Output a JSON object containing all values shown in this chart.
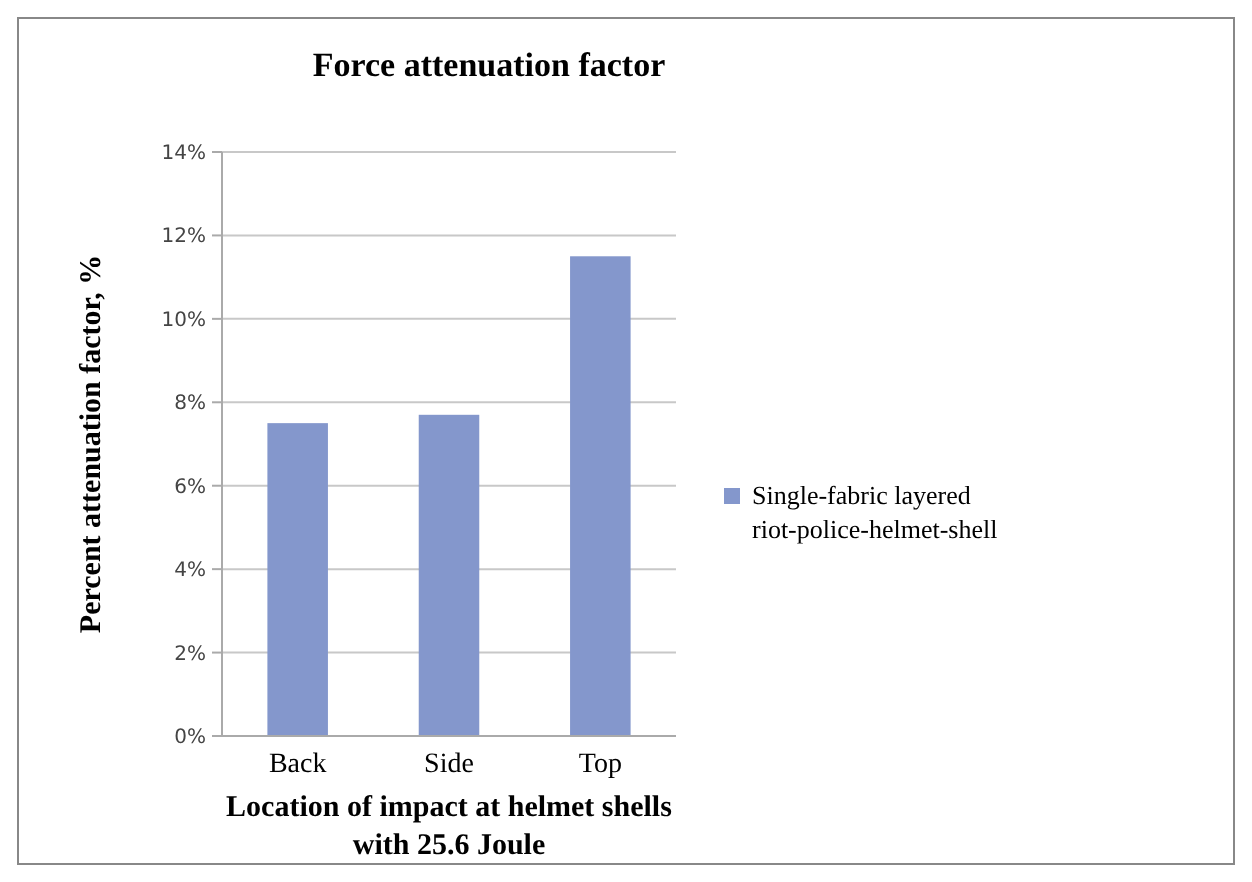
{
  "chart_data": {
    "type": "bar",
    "title": "Force attenuation factor",
    "xlabel": "Location of impact at helmet shells with 25.6 Joule",
    "ylabel": "Percent attenuation factor, %",
    "categories": [
      "Back",
      "Side",
      "Top"
    ],
    "series": [
      {
        "name": "Single-fabric layered riot-police-helmet-shell",
        "color": "#8497cc",
        "values": [
          7.5,
          7.7,
          11.5
        ]
      }
    ],
    "ylim": [
      0,
      14
    ],
    "yticks": [
      {
        "value": 0,
        "label": "0%"
      },
      {
        "value": 2,
        "label": "2%"
      },
      {
        "value": 4,
        "label": "4%"
      },
      {
        "value": 6,
        "label": "6%"
      },
      {
        "value": 8,
        "label": "8%"
      },
      {
        "value": 10,
        "label": "10%"
      },
      {
        "value": 12,
        "label": "12%"
      },
      {
        "value": 14,
        "label": "14%"
      }
    ],
    "grid": "y",
    "legend": "right"
  }
}
